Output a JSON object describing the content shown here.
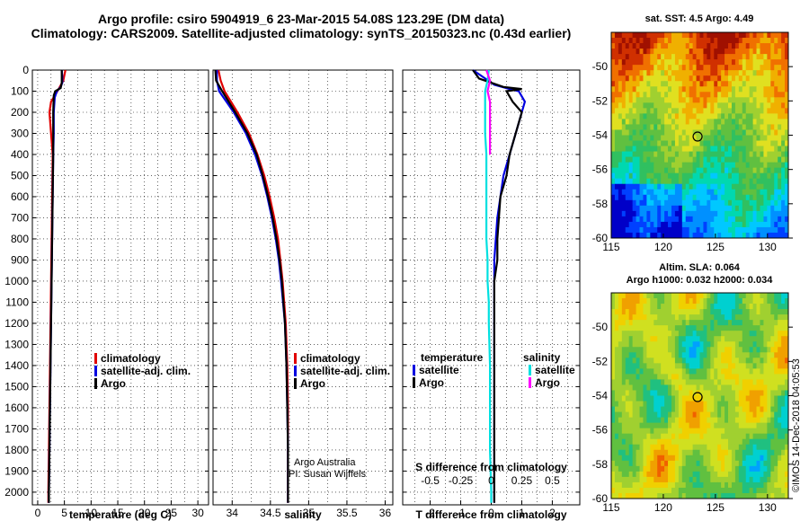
{
  "header": {
    "title_line1": "Argo profile: csiro 5904919_6 23-Mar-2015 54.08S 123.29E (DM data)",
    "title_line2": "Climatology: CARS2009. Satellite-adjusted climatology: synTS_20150323.nc (0.43d earlier)"
  },
  "colors": {
    "climatology": "#e00000",
    "satellite": "#0000e0",
    "argo": "#000000",
    "satellite_salinity": "#00e0e0",
    "argo_salinity": "#ff00ff",
    "circle": "#000000"
  },
  "chart_data": [
    {
      "type": "line",
      "id": "temperature-panel",
      "xlabel": "temperature (deg C)",
      "ylabel": "",
      "xlim": [
        -1,
        32
      ],
      "ylim": [
        2060,
        0
      ],
      "x_ticks": [
        0,
        5,
        10,
        15,
        20,
        25,
        30
      ],
      "x_tick_labels": [
        "0",
        "5",
        "10",
        "15",
        "20",
        "25",
        "30"
      ],
      "y_ticks": [
        0,
        100,
        200,
        300,
        400,
        500,
        600,
        700,
        800,
        900,
        1000,
        1100,
        1200,
        1300,
        1400,
        1500,
        1600,
        1700,
        1800,
        1900,
        2000
      ],
      "y_tick_labels": [
        "0",
        "100",
        "200",
        "300",
        "400",
        "500",
        "600",
        "700",
        "800",
        "900",
        "1000",
        "1100",
        "1200",
        "1300",
        "1400",
        "1500",
        "1600",
        "1700",
        "1800",
        "1900",
        "2000"
      ],
      "grid": "dotted",
      "legend_position": "middle-right",
      "legend": [
        "climatology",
        "satellite-adj. clim.",
        "Argo"
      ],
      "series": [
        {
          "name": "climatology",
          "color_key": "climatology",
          "depth": [
            0,
            50,
            100,
            150,
            200,
            300,
            400,
            600,
            800,
            1000,
            1200,
            1400,
            1600,
            1800,
            2000,
            2050
          ],
          "values": [
            5.2,
            4.8,
            3.7,
            2.5,
            2.2,
            2.5,
            2.8,
            2.7,
            2.6,
            2.5,
            2.4,
            2.3,
            2.2,
            2.1,
            2.0,
            2.0
          ]
        },
        {
          "name": "satellite-adj. clim.",
          "color_key": "satellite",
          "depth": [
            0,
            30,
            60,
            80,
            100,
            130,
            200,
            300,
            400,
            600,
            800,
            1000,
            1200,
            1400,
            1600,
            1800,
            2000,
            2050
          ],
          "values": [
            4.5,
            4.6,
            4.6,
            4.3,
            3.6,
            3.2,
            3.0,
            3.0,
            2.9,
            2.8,
            2.7,
            2.6,
            2.5,
            2.4,
            2.3,
            2.2,
            2.1,
            2.1
          ]
        },
        {
          "name": "Argo",
          "color_key": "argo",
          "depth": [
            0,
            20,
            60,
            85,
            100,
            120,
            200,
            300,
            400,
            600,
            800,
            1000,
            1200,
            1400,
            1600,
            1800,
            2000,
            2050
          ],
          "values": [
            4.5,
            4.5,
            4.5,
            4.3,
            3.3,
            3.0,
            2.9,
            2.9,
            2.9,
            2.8,
            2.7,
            2.6,
            2.5,
            2.4,
            2.3,
            2.2,
            2.1,
            2.1
          ]
        }
      ]
    },
    {
      "type": "line",
      "id": "salinity-panel",
      "xlabel": "salinity",
      "ylabel": "",
      "xlim": [
        33.75,
        36.1
      ],
      "ylim": [
        2060,
        0
      ],
      "x_ticks": [
        34,
        34.5,
        35,
        35.5,
        36
      ],
      "x_tick_labels": [
        "34",
        "34.5",
        "35",
        "35.5",
        "36"
      ],
      "grid": "dotted",
      "legend_position": "middle-right",
      "legend": [
        "climatology",
        "satellite-adj. clim.",
        "Argo"
      ],
      "annotation": [
        "Argo Australia",
        "PI: Susan Wijffels"
      ],
      "series": [
        {
          "name": "climatology",
          "color_key": "climatology",
          "depth": [
            0,
            50,
            100,
            200,
            300,
            400,
            500,
            600,
            700,
            800,
            900,
            1000,
            1200,
            1400,
            1600,
            1800,
            2000,
            2050
          ],
          "values": [
            33.82,
            33.85,
            33.9,
            34.07,
            34.22,
            34.33,
            34.42,
            34.49,
            34.55,
            34.6,
            34.63,
            34.66,
            34.7,
            34.72,
            34.73,
            34.73,
            34.73,
            34.73
          ]
        },
        {
          "name": "satellite-adj. clim.",
          "color_key": "satellite",
          "depth": [
            0,
            50,
            100,
            200,
            300,
            400,
            500,
            600,
            700,
            800,
            900,
            1000,
            1200,
            1400,
            1600,
            1800,
            2000,
            2050
          ],
          "values": [
            33.8,
            33.8,
            33.83,
            34.02,
            34.18,
            34.3,
            34.39,
            34.46,
            34.52,
            34.57,
            34.61,
            34.64,
            34.69,
            34.71,
            34.72,
            34.73,
            34.73,
            34.73
          ]
        },
        {
          "name": "Argo",
          "color_key": "argo",
          "depth": [
            0,
            50,
            100,
            200,
            300,
            400,
            500,
            600,
            700,
            800,
            900,
            1000,
            1200,
            1400,
            1600,
            1800,
            2000,
            2050
          ],
          "values": [
            33.78,
            33.79,
            33.87,
            34.04,
            34.2,
            34.32,
            34.4,
            34.47,
            34.53,
            34.58,
            34.62,
            34.65,
            34.69,
            34.71,
            34.72,
            34.73,
            34.73,
            34.73
          ]
        }
      ]
    },
    {
      "type": "line",
      "id": "difference-panel",
      "xlabel": "T difference from climatology",
      "top_axis_label": "S difference from climatology",
      "xlim": [
        -2.9,
        2.9
      ],
      "ylim": [
        2060,
        0
      ],
      "x_ticks": [
        -2,
        -1,
        0,
        1,
        2
      ],
      "x_tick_labels": [
        "-2",
        "-1",
        "0",
        "1",
        "2"
      ],
      "s_ticks": [
        -0.5,
        -0.25,
        0,
        0.25,
        0.5
      ],
      "s_tick_labels": [
        "-0.5",
        "-0.25",
        "0",
        "0.25",
        "0.5"
      ],
      "s_scale": 4,
      "grid": "dotted",
      "legend_position": "middle",
      "legend_temperature_title": "temperature",
      "legend_salinity_title": "salinity",
      "legend_temperature": [
        "satellite",
        "Argo"
      ],
      "legend_salinity": [
        "satellite",
        "Argo"
      ],
      "series": [
        {
          "name": "T satellite",
          "color_key": "satellite",
          "depth": [
            0,
            30,
            70,
            90,
            100,
            150,
            200,
            300,
            400,
            500,
            600,
            700,
            800,
            900,
            1000,
            1200,
            1400,
            1600,
            1800,
            2000,
            2050
          ],
          "values": [
            -0.6,
            -0.3,
            0.1,
            0.6,
            0.9,
            1.1,
            1.0,
            0.8,
            0.6,
            0.4,
            0.3,
            0.2,
            0.15,
            0.1,
            0.1,
            0.1,
            0.1,
            0.1,
            0.1,
            0.1,
            0.1
          ]
        },
        {
          "name": "T Argo",
          "color_key": "argo",
          "depth": [
            0,
            40,
            80,
            90,
            100,
            150,
            200,
            250,
            300,
            400,
            500,
            600,
            700,
            800,
            900,
            1000,
            1200,
            1400,
            1600,
            1800,
            2000,
            2050
          ],
          "values": [
            -0.6,
            -0.4,
            0.4,
            1.0,
            0.5,
            0.7,
            1.0,
            0.9,
            0.8,
            0.6,
            0.5,
            0.3,
            0.25,
            0.2,
            0.2,
            0.1,
            0.1,
            0.1,
            0.1,
            0.1,
            0.1,
            0.1
          ]
        },
        {
          "name": "S satellite",
          "color_key": "satellite_salinity",
          "depth": [
            0,
            50,
            100,
            200,
            300,
            400,
            500,
            600,
            700,
            800,
            900,
            1000,
            1100,
            1200,
            1400,
            1600,
            1800,
            2000,
            2050
          ],
          "values": [
            -0.02,
            -0.03,
            -0.05,
            -0.05,
            -0.05,
            -0.04,
            -0.04,
            -0.04,
            -0.04,
            -0.04,
            -0.03,
            -0.03,
            -0.02,
            -0.02,
            -0.01,
            -0.01,
            -0.01,
            0.0,
            0.0
          ]
        },
        {
          "name": "S Argo",
          "color_key": "argo_salinity",
          "depth": [
            0,
            50,
            100,
            150,
            200,
            300,
            400
          ],
          "values": [
            -0.04,
            -0.01,
            -0.03,
            -0.01,
            -0.01,
            -0.01,
            -0.01
          ]
        }
      ]
    },
    {
      "type": "heatmap",
      "id": "sst-map",
      "title": "sat. SST: 4.5 Argo: 4.49",
      "xlim": [
        115,
        132
      ],
      "ylim": [
        -60,
        -48
      ],
      "x_ticks": [
        115,
        120,
        125,
        130
      ],
      "x_tick_labels": [
        "115",
        "120",
        "125",
        "130"
      ],
      "y_ticks": [
        -50,
        -52,
        -54,
        -56,
        -58,
        -60
      ],
      "y_tick_labels": [
        "-50",
        "-52",
        "-54",
        "-56",
        "-58",
        "-60"
      ],
      "marker": {
        "lon": 123.29,
        "lat": -54.08
      }
    },
    {
      "type": "heatmap",
      "id": "sla-map",
      "title_line1": "Altim. SLA: 0.064",
      "title_line2": "Argo h1000: 0.032 h2000: 0.034",
      "xlim": [
        115,
        132
      ],
      "ylim": [
        -60,
        -48
      ],
      "x_ticks": [
        115,
        120,
        125,
        130
      ],
      "x_tick_labels": [
        "115",
        "120",
        "125",
        "130"
      ],
      "y_ticks": [
        -50,
        -52,
        -54,
        -56,
        -58,
        -60
      ],
      "y_tick_labels": [
        "-50",
        "-52",
        "-54",
        "-56",
        "-58",
        "-60"
      ],
      "marker": {
        "lon": 123.29,
        "lat": -54.08
      }
    }
  ],
  "side_credit": "©IMOS 14-Dec-2018 04:05:53"
}
